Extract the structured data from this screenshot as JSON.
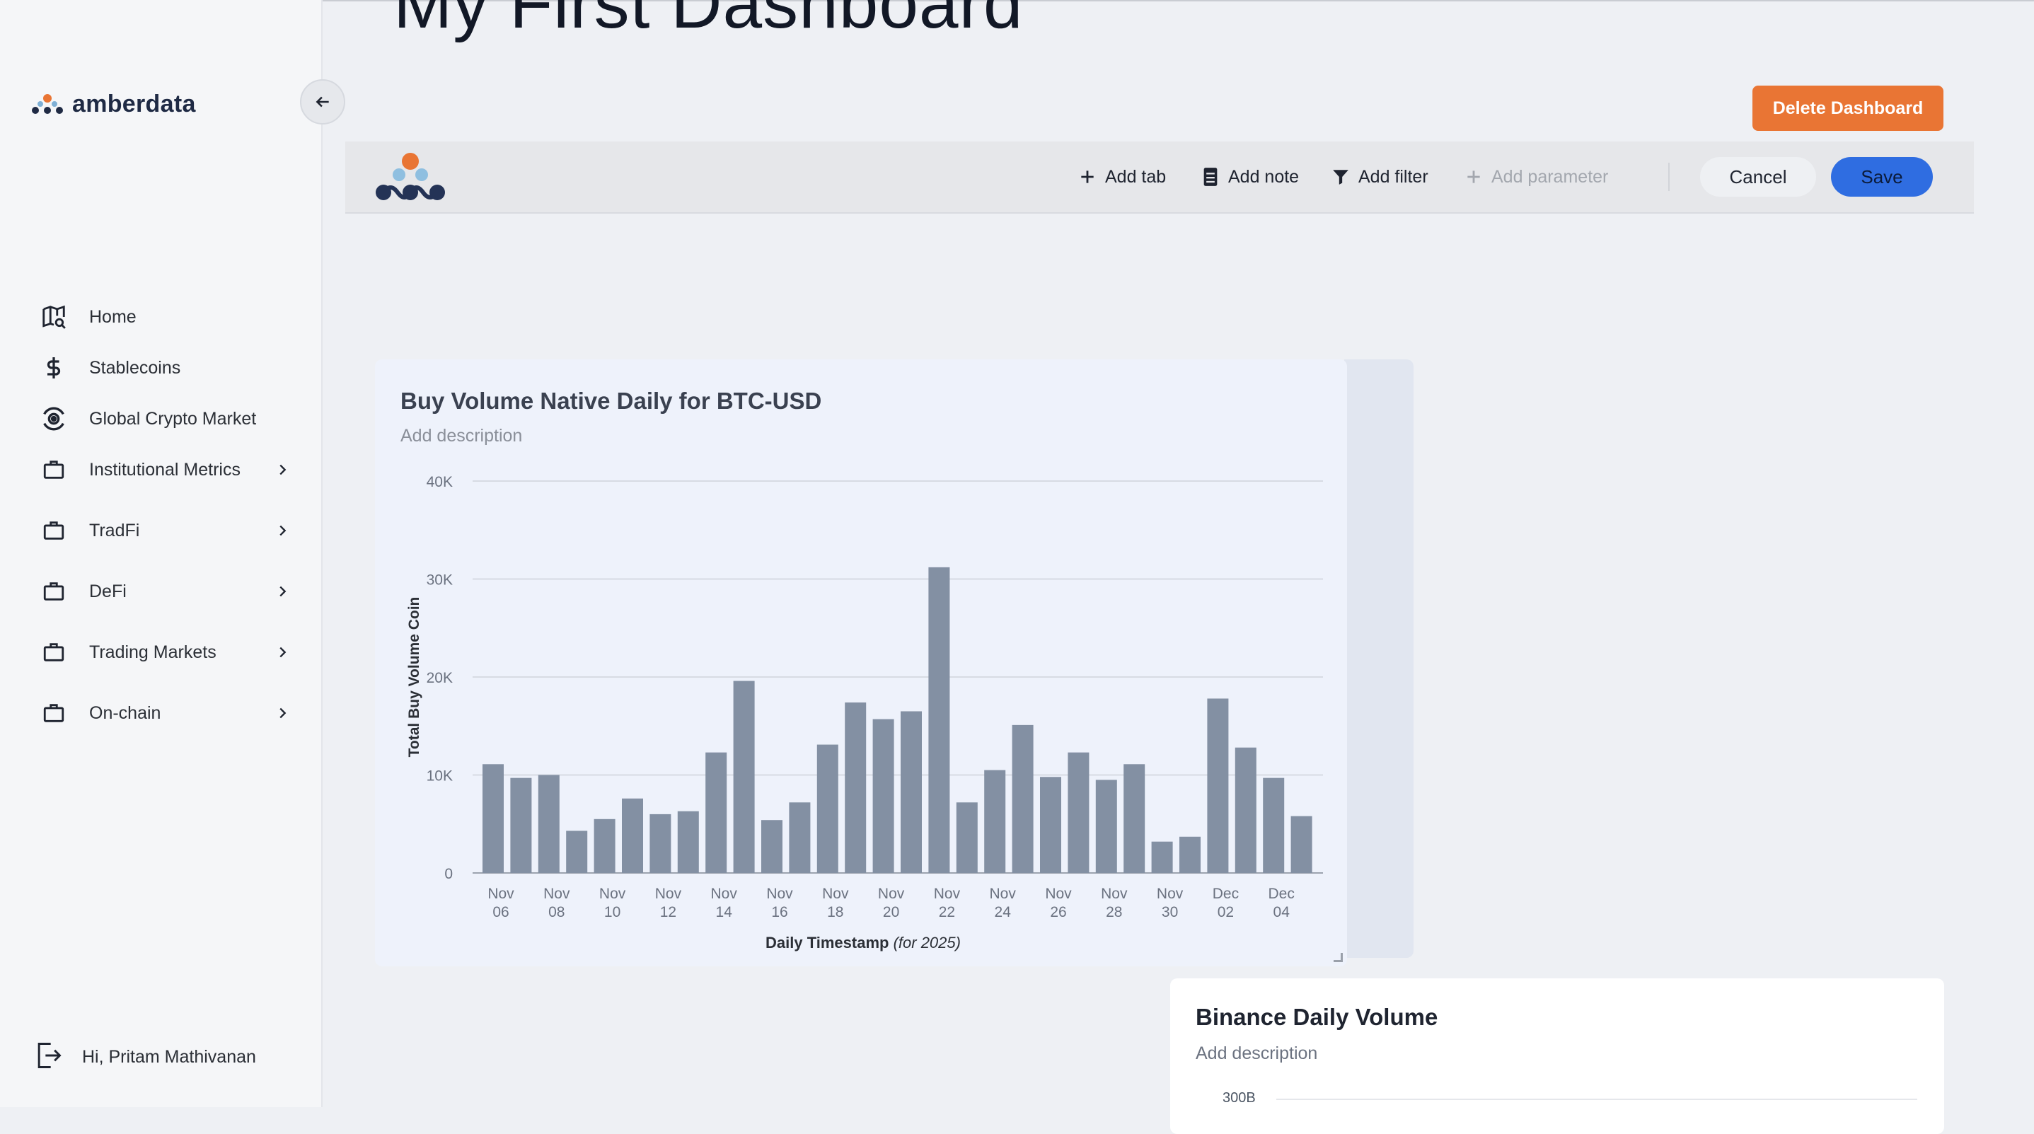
{
  "app": {
    "brand": "amberdata",
    "page_title": "My First Dashboard"
  },
  "sidebar": {
    "items": [
      {
        "label": "Home",
        "icon": "map-search-icon",
        "has_children": false
      },
      {
        "label": "Stablecoins",
        "icon": "dollar-icon",
        "has_children": false
      },
      {
        "label": "Global Crypto Market",
        "icon": "globe-orbit-icon",
        "has_children": false
      },
      {
        "label": "Institutional Metrics",
        "icon": "briefcase-icon",
        "has_children": true
      },
      {
        "label": "TradFi",
        "icon": "briefcase-icon",
        "has_children": true
      },
      {
        "label": "DeFi",
        "icon": "briefcase-icon",
        "has_children": true
      },
      {
        "label": "Trading Markets",
        "icon": "briefcase-icon",
        "has_children": true
      },
      {
        "label": "On-chain",
        "icon": "briefcase-icon",
        "has_children": true
      }
    ],
    "user_greeting": "Hi, Pritam Mathivanan"
  },
  "header": {
    "delete_label": "Delete Dashboard"
  },
  "toolbar": {
    "add_tab": "Add tab",
    "add_note": "Add note",
    "add_filter": "Add filter",
    "add_parameter": "Add parameter",
    "cancel": "Cancel",
    "save": "Save"
  },
  "colors": {
    "accent_orange": "#e97534",
    "save_blue": "#2f6de1",
    "bar": "#8390a3"
  },
  "card1": {
    "title": "Buy Volume Native Daily for BTC-USD",
    "description": "Add description"
  },
  "card2": {
    "title": "Binance Daily Volume",
    "description": "Add description",
    "first_tick": "300B"
  },
  "chart_data": {
    "type": "bar",
    "title": "Buy Volume Native Daily for BTC-USD",
    "xlabel": "Daily Timestamp",
    "xlabel_note": "(for 2025)",
    "ylabel": "Total Buy Volume Coin",
    "ylim": [
      0,
      40000
    ],
    "yticks": [
      {
        "value": 0,
        "label": "0"
      },
      {
        "value": 10000,
        "label": "10K"
      },
      {
        "value": 20000,
        "label": "20K"
      },
      {
        "value": 30000,
        "label": "30K"
      },
      {
        "value": 40000,
        "label": "40K"
      }
    ],
    "grid": true,
    "x_tick_labels": [
      {
        "index": 0,
        "line1": "Nov",
        "line2": "06"
      },
      {
        "index": 2,
        "line1": "Nov",
        "line2": "08"
      },
      {
        "index": 4,
        "line1": "Nov",
        "line2": "10"
      },
      {
        "index": 6,
        "line1": "Nov",
        "line2": "12"
      },
      {
        "index": 8,
        "line1": "Nov",
        "line2": "14"
      },
      {
        "index": 10,
        "line1": "Nov",
        "line2": "16"
      },
      {
        "index": 12,
        "line1": "Nov",
        "line2": "18"
      },
      {
        "index": 14,
        "line1": "Nov",
        "line2": "20"
      },
      {
        "index": 16,
        "line1": "Nov",
        "line2": "22"
      },
      {
        "index": 18,
        "line1": "Nov",
        "line2": "24"
      },
      {
        "index": 20,
        "line1": "Nov",
        "line2": "26"
      },
      {
        "index": 22,
        "line1": "Nov",
        "line2": "28"
      },
      {
        "index": 24,
        "line1": "Nov",
        "line2": "30"
      },
      {
        "index": 26,
        "line1": "Dec",
        "line2": "02"
      },
      {
        "index": 28,
        "line1": "Dec",
        "line2": "04"
      }
    ],
    "categories": [
      "2025-11-06",
      "2025-11-07",
      "2025-11-08",
      "2025-11-09",
      "2025-11-10",
      "2025-11-11",
      "2025-11-12",
      "2025-11-13",
      "2025-11-14",
      "2025-11-15",
      "2025-11-16",
      "2025-11-17",
      "2025-11-18",
      "2025-11-19",
      "2025-11-20",
      "2025-11-21",
      "2025-11-22",
      "2025-11-23",
      "2025-11-24",
      "2025-11-25",
      "2025-11-26",
      "2025-11-27",
      "2025-11-28",
      "2025-11-29",
      "2025-11-30",
      "2025-12-01",
      "2025-12-02",
      "2025-12-03",
      "2025-12-04",
      "2025-12-05"
    ],
    "values": [
      11100,
      9700,
      10000,
      4300,
      5500,
      7600,
      6000,
      6300,
      12300,
      19600,
      5400,
      7200,
      13100,
      17400,
      15700,
      16500,
      31200,
      7200,
      10500,
      15100,
      9800,
      12300,
      9500,
      11100,
      3200,
      3700,
      17800,
      12800,
      9700,
      5800
    ]
  }
}
